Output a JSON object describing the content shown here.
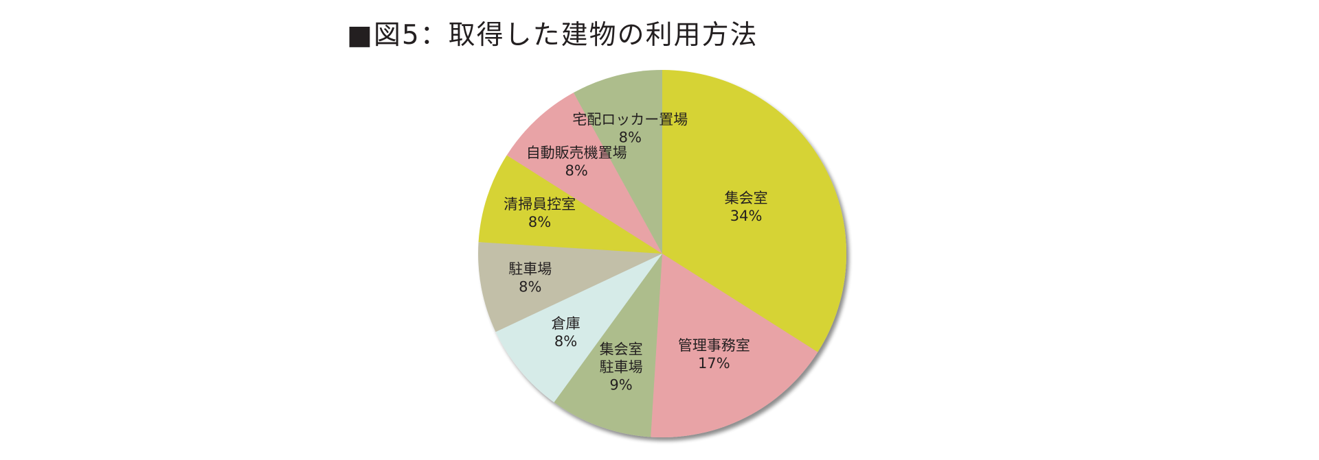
{
  "chart_data": {
    "type": "pie",
    "title": "■図5：取得した建物の利用方法",
    "start_angle_deg": 0,
    "direction": "clockwise",
    "slices": [
      {
        "label_lines": [
          "集会室"
        ],
        "value": 34,
        "value_label": "34%",
        "color": "#d6d335"
      },
      {
        "label_lines": [
          "管理事務室"
        ],
        "value": 17,
        "value_label": "17%",
        "color": "#e8a3a6"
      },
      {
        "label_lines": [
          "集会室",
          "駐車場"
        ],
        "value": 9,
        "value_label": "9%",
        "color": "#adbd8c"
      },
      {
        "label_lines": [
          "倉庫"
        ],
        "value": 8,
        "value_label": "8%",
        "color": "#d6ebe8"
      },
      {
        "label_lines": [
          "駐車場"
        ],
        "value": 8,
        "value_label": "8%",
        "color": "#c2bfa8"
      },
      {
        "label_lines": [
          "清掃員控室"
        ],
        "value": 8,
        "value_label": "8%",
        "color": "#d6d335"
      },
      {
        "label_lines": [
          "自動販売機置場"
        ],
        "value": 8,
        "value_label": "8%",
        "color": "#e8a3a6"
      },
      {
        "label_lines": [
          "宅配ロッカー置場"
        ],
        "value": 8,
        "value_label": "8%",
        "color": "#adbd8c"
      }
    ]
  }
}
